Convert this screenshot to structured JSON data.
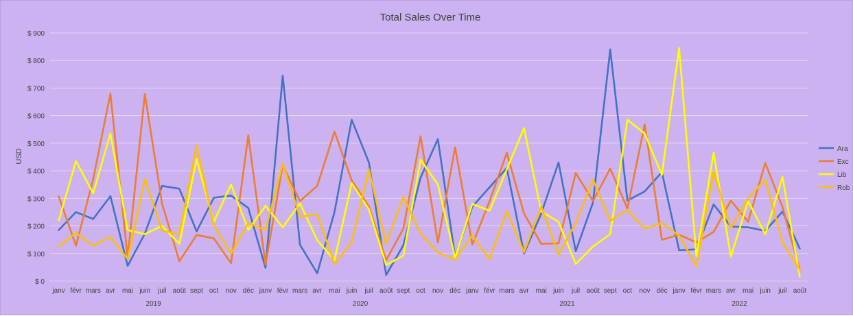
{
  "colors": {
    "background": "#ccb2f0",
    "gridline": "#e4d8f6",
    "axis_text": "#404040"
  },
  "chart_data": {
    "type": "line",
    "title": "Total Sales Over Time",
    "xlabel": "",
    "ylabel": "USD",
    "ylim": [
      0,
      900
    ],
    "y_ticks": [
      "$ 0",
      "$ 100",
      "$ 200",
      "$ 300",
      "$ 400",
      "$ 500",
      "$ 600",
      "$ 700",
      "$ 800",
      "$ 900"
    ],
    "grid": true,
    "legend_position": "right",
    "categories": [
      "janv",
      "févr",
      "mars",
      "avr",
      "mai",
      "juin",
      "juil",
      "août",
      "sept",
      "oct",
      "nov",
      "déc",
      "janv",
      "févr",
      "mars",
      "avr",
      "mai",
      "juin",
      "juil",
      "août",
      "sept",
      "oct",
      "nov",
      "déc",
      "janv",
      "févr",
      "mars",
      "avr",
      "mai",
      "juin",
      "juil",
      "août",
      "sept",
      "oct",
      "nov",
      "déc",
      "janv",
      "févr",
      "mars",
      "avr",
      "mai",
      "juin",
      "juil",
      "août"
    ],
    "year_groups": [
      {
        "label": "2019",
        "count": 12
      },
      {
        "label": "2020",
        "count": 12
      },
      {
        "label": "2021",
        "count": 12
      },
      {
        "label": "2022",
        "count": 8
      }
    ],
    "series": [
      {
        "name": "Ara",
        "color": "#4472c4",
        "values": [
          185,
          250,
          225,
          308,
          55,
          172,
          345,
          335,
          180,
          302,
          310,
          265,
          48,
          745,
          132,
          28,
          250,
          585,
          430,
          22,
          130,
          375,
          515,
          88,
          270,
          340,
          410,
          100,
          245,
          430,
          108,
          285,
          840,
          292,
          325,
          395,
          112,
          115,
          278,
          198,
          195,
          182,
          252,
          118
        ]
      },
      {
        "name": "Exc",
        "color": "#ed7d31",
        "values": [
          307,
          128,
          370,
          680,
          85,
          678,
          280,
          72,
          167,
          155,
          65,
          528,
          60,
          420,
          290,
          345,
          542,
          365,
          270,
          75,
          190,
          525,
          140,
          485,
          132,
          290,
          465,
          245,
          135,
          137,
          392,
          290,
          408,
          263,
          568,
          150,
          168,
          140,
          178,
          292,
          215,
          428,
          268,
          40
        ]
      },
      {
        "name": "Lib",
        "color": "#ffff00",
        "values": [
          220,
          435,
          318,
          535,
          185,
          170,
          200,
          135,
          442,
          215,
          350,
          185,
          273,
          195,
          282,
          148,
          75,
          355,
          260,
          58,
          92,
          440,
          350,
          85,
          280,
          255,
          405,
          555,
          252,
          215,
          62,
          125,
          170,
          585,
          535,
          385,
          845,
          90,
          465,
          88,
          290,
          170,
          378,
          15
        ]
      },
      {
        "name": "Rob",
        "color": "#ffc000",
        "values": [
          125,
          175,
          128,
          160,
          80,
          370,
          183,
          170,
          492,
          202,
          100,
          210,
          185,
          425,
          233,
          242,
          62,
          140,
          405,
          135,
          305,
          172,
          103,
          78,
          165,
          80,
          253,
          105,
          270,
          95,
          210,
          368,
          218,
          258,
          190,
          210,
          165,
          55,
          395,
          192,
          300,
          368,
          140,
          42
        ]
      }
    ]
  }
}
